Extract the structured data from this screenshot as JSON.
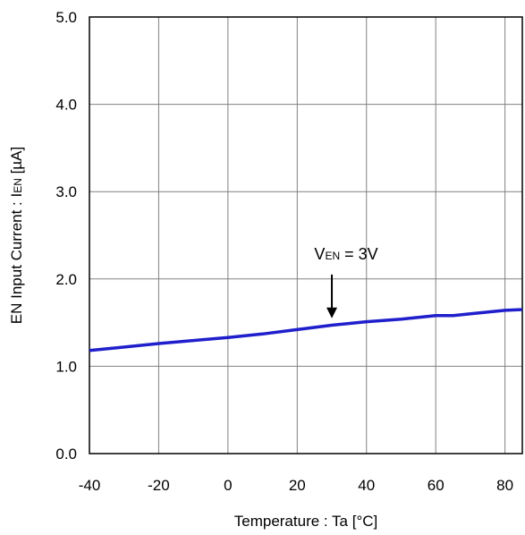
{
  "chart_data": {
    "type": "line",
    "xlabel": "Temperature : Ta [°C]",
    "ylabel_main": "EN Input Current : I",
    "ylabel_sub": "EN",
    "ylabel_tail": " [µA]",
    "xlim": [
      -40,
      85
    ],
    "ylim": [
      0,
      5
    ],
    "x_ticks": [
      "-40",
      "-20",
      "0",
      "20",
      "40",
      "60",
      "80"
    ],
    "y_ticks": [
      "0.0",
      "1.0",
      "2.0",
      "3.0",
      "4.0",
      "5.0"
    ],
    "x_tick_values": [
      -40,
      -20,
      0,
      20,
      40,
      60,
      80
    ],
    "y_tick_values": [
      0,
      1,
      2,
      3,
      4,
      5
    ],
    "grid": true,
    "series": [
      {
        "color": "#1f1fcc",
        "x": [
          -40,
          -20,
          0,
          10,
          20,
          30,
          40,
          50,
          60,
          65,
          70,
          80,
          85
        ],
        "y": [
          1.18,
          1.26,
          1.33,
          1.37,
          1.42,
          1.47,
          1.51,
          1.54,
          1.58,
          1.58,
          1.6,
          1.64,
          1.65
        ]
      }
    ],
    "annotation": {
      "text_main": "V",
      "text_sub": "EN",
      "text_tail": " = 3V",
      "arrow_x": 30,
      "arrow_from_y": 2.05,
      "arrow_to_y": 1.55
    }
  }
}
